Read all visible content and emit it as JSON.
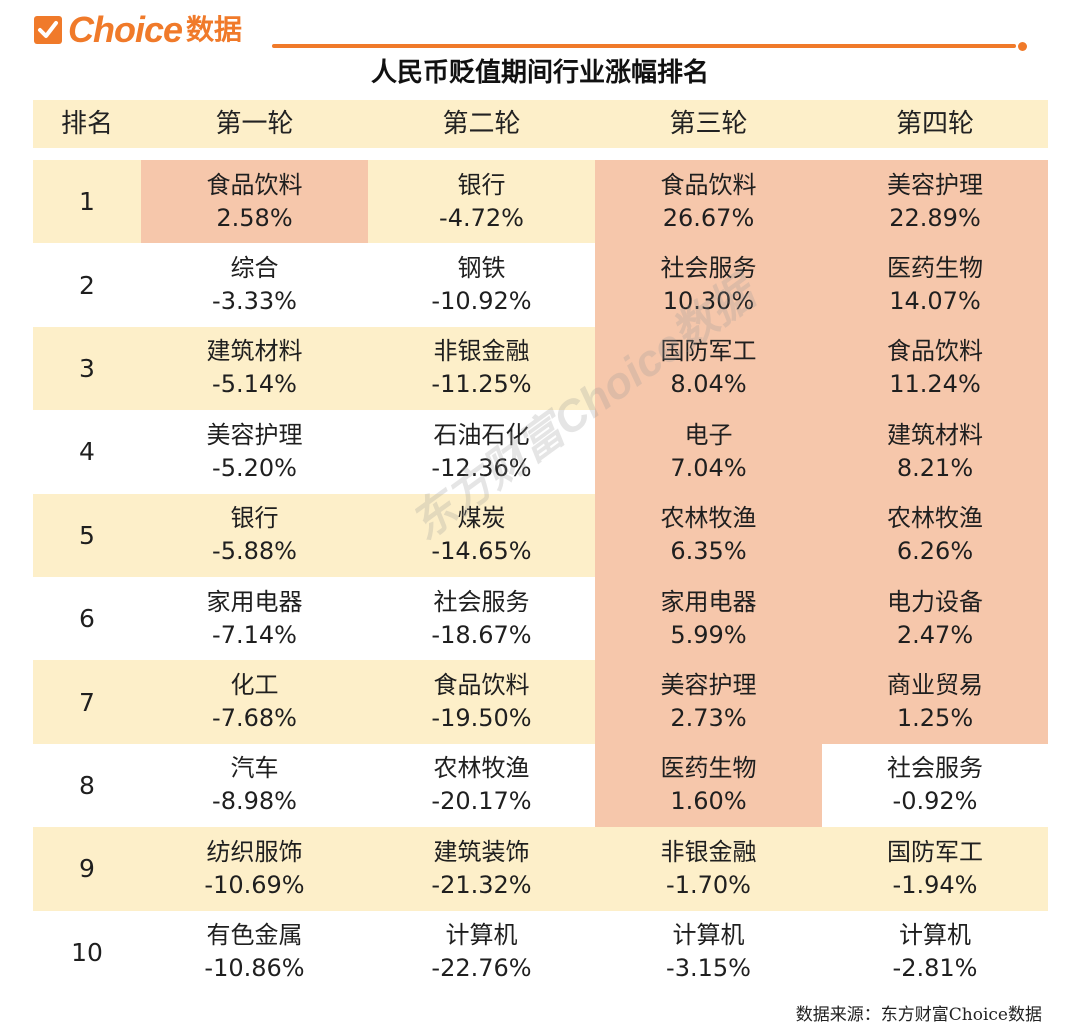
{
  "logo": {
    "brand": "Choice",
    "cn": "数据",
    "check": "✓"
  },
  "title": "人民币贬值期间行业涨幅排名",
  "columns": [
    "排名",
    "第一轮",
    "第二轮",
    "第三轮",
    "第四轮"
  ],
  "rows": [
    {
      "rank": "1",
      "r1": {
        "name": "食品饮料",
        "value": "2.58%"
      },
      "r2": {
        "name": "银行",
        "value": "-4.72%"
      },
      "r3": {
        "name": "食品饮料",
        "value": "26.67%"
      },
      "r4": {
        "name": "美容护理",
        "value": "22.89%"
      }
    },
    {
      "rank": "2",
      "r1": {
        "name": "综合",
        "value": "-3.33%"
      },
      "r2": {
        "name": "钢铁",
        "value": "-10.92%"
      },
      "r3": {
        "name": "社会服务",
        "value": "10.30%"
      },
      "r4": {
        "name": "医药生物",
        "value": "14.07%"
      }
    },
    {
      "rank": "3",
      "r1": {
        "name": "建筑材料",
        "value": "-5.14%"
      },
      "r2": {
        "name": "非银金融",
        "value": "-11.25%"
      },
      "r3": {
        "name": "国防军工",
        "value": "8.04%"
      },
      "r4": {
        "name": "食品饮料",
        "value": "11.24%"
      }
    },
    {
      "rank": "4",
      "r1": {
        "name": "美容护理",
        "value": "-5.20%"
      },
      "r2": {
        "name": "石油石化",
        "value": "-12.36%"
      },
      "r3": {
        "name": "电子",
        "value": "7.04%"
      },
      "r4": {
        "name": "建筑材料",
        "value": "8.21%"
      }
    },
    {
      "rank": "5",
      "r1": {
        "name": "银行",
        "value": "-5.88%"
      },
      "r2": {
        "name": "煤炭",
        "value": "-14.65%"
      },
      "r3": {
        "name": "农林牧渔",
        "value": "6.35%"
      },
      "r4": {
        "name": "农林牧渔",
        "value": "6.26%"
      }
    },
    {
      "rank": "6",
      "r1": {
        "name": "家用电器",
        "value": "-7.14%"
      },
      "r2": {
        "name": "社会服务",
        "value": "-18.67%"
      },
      "r3": {
        "name": "家用电器",
        "value": "5.99%"
      },
      "r4": {
        "name": "电力设备",
        "value": "2.47%"
      }
    },
    {
      "rank": "7",
      "r1": {
        "name": "化工",
        "value": "-7.68%"
      },
      "r2": {
        "name": "食品饮料",
        "value": "-19.50%"
      },
      "r3": {
        "name": "美容护理",
        "value": "2.73%"
      },
      "r4": {
        "name": "商业贸易",
        "value": "1.25%"
      }
    },
    {
      "rank": "8",
      "r1": {
        "name": "汽车",
        "value": "-8.98%"
      },
      "r2": {
        "name": "农林牧渔",
        "value": "-20.17%"
      },
      "r3": {
        "name": "医药生物",
        "value": "1.60%"
      },
      "r4": {
        "name": "社会服务",
        "value": "-0.92%"
      }
    },
    {
      "rank": "9",
      "r1": {
        "name": "纺织服饰",
        "value": "-10.69%"
      },
      "r2": {
        "name": "建筑装饰",
        "value": "-21.32%"
      },
      "r3": {
        "name": "非银金融",
        "value": "-1.70%"
      },
      "r4": {
        "name": "国防军工",
        "value": "-1.94%"
      }
    },
    {
      "rank": "10",
      "r1": {
        "name": "有色金属",
        "value": "-10.86%"
      },
      "r2": {
        "name": "计算机",
        "value": "-22.76%"
      },
      "r3": {
        "name": "计算机",
        "value": "-3.15%"
      },
      "r4": {
        "name": "计算机",
        "value": "-2.81%"
      }
    }
  ],
  "watermark": "东方财富Choice数据",
  "source": "数据来源：东方财富Choice数据",
  "colors": {
    "accent": "#f07a2a",
    "band": "#fdefc9",
    "highlight": "#f6c7ab"
  }
}
